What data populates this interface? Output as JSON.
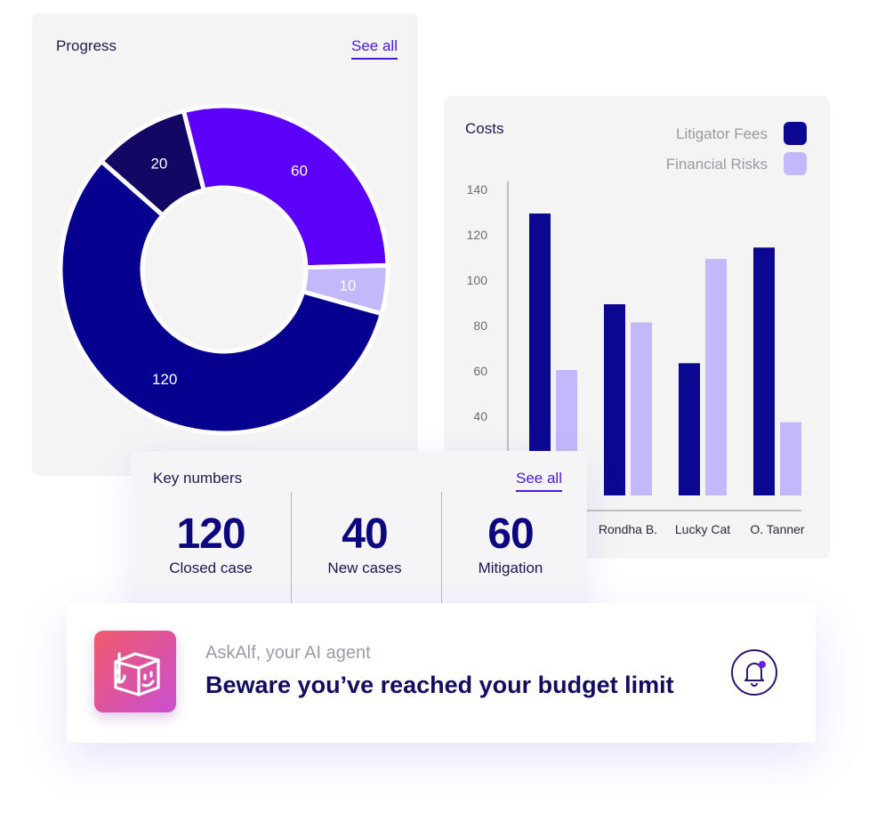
{
  "progress": {
    "title": "Progress",
    "see_all": "See all"
  },
  "costs": {
    "title": "Costs",
    "legend": [
      {
        "label": "Litigator Fees",
        "color": "#0c0790"
      },
      {
        "label": "Financial Risks",
        "color": "#c1b9fb"
      }
    ]
  },
  "key_numbers": {
    "title": "Key numbers",
    "see_all": "See all",
    "items": [
      {
        "value": "120",
        "label": "Closed case"
      },
      {
        "value": "40",
        "label": "New cases"
      },
      {
        "value": "60",
        "label": "Mitigation"
      }
    ]
  },
  "notification": {
    "agent": "AskAlf, your AI agent",
    "message": "Beware you’ve reached your budget limit"
  },
  "chart_data": [
    {
      "type": "pie",
      "title": "Progress",
      "categories": [
        "",
        "",
        "",
        ""
      ],
      "values": [
        20,
        60,
        10,
        120
      ],
      "colors": [
        "#130764",
        "#5c00fa",
        "#c3b9fa",
        "#070190"
      ],
      "labels": [
        "20",
        "60",
        "10",
        "120"
      ]
    },
    {
      "type": "bar",
      "title": "Costs",
      "categories": [
        "",
        "Rondha B.",
        "Lucky Cat",
        "O. Tanner"
      ],
      "series": [
        {
          "name": "Litigator Fees",
          "values": [
            129,
            89,
            63,
            114
          ],
          "color": "#0c0790"
        },
        {
          "name": "Financial Risks",
          "values": [
            60,
            81,
            109,
            37
          ],
          "color": "#c1b9fb"
        }
      ],
      "yticks": [
        40,
        60,
        80,
        100,
        120,
        140
      ],
      "ylim": [
        0,
        140
      ],
      "xlabel": "",
      "ylabel": ""
    }
  ]
}
